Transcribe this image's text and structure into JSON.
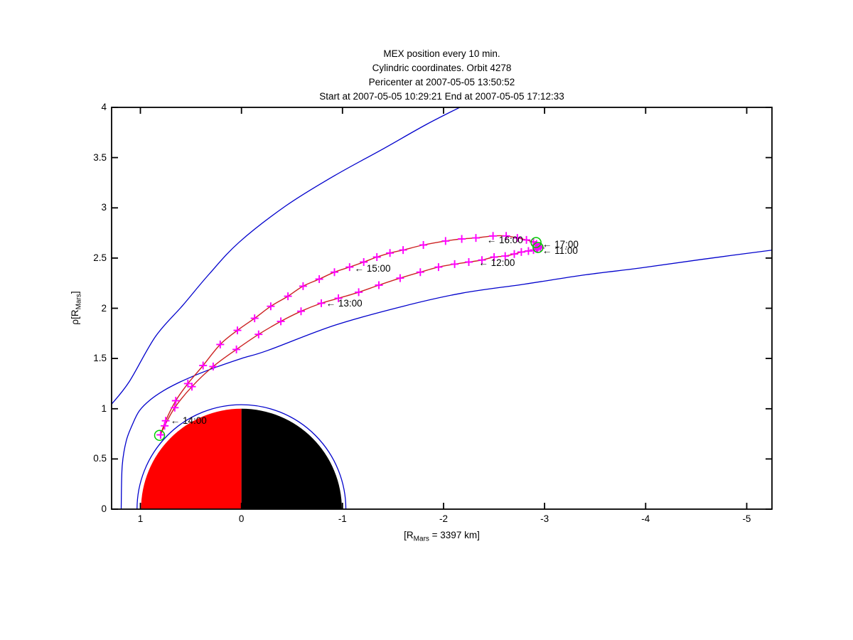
{
  "figure": {
    "title_lines": [
      "MEX position every 10 min.",
      "Cylindric coordinates. Orbit 4278",
      "Pericenter at 2007-05-05 13:50:52",
      "Start at 2007-05-05 10:29:21 End at 2007-05-05 17:12:33"
    ],
    "background": "#ffffff"
  },
  "axes": {
    "xlabel": {
      "prefix": "[R",
      "sub": "Mars",
      "suffix": " = 3397 km]"
    },
    "ylabel": {
      "prefix": "ρ[R",
      "sub": "Mars",
      "suffix": "]"
    },
    "xlim": [
      1.285,
      -5.25
    ],
    "ylim": [
      0,
      4
    ],
    "x_ticks": [
      1,
      0,
      -1,
      -2,
      -3,
      -4,
      -5
    ],
    "x_tick_labels": [
      "1",
      "0",
      "-1",
      "-2",
      "-3",
      "-4",
      "-5"
    ],
    "y_ticks": [
      0,
      0.5,
      1,
      1.5,
      2,
      2.5,
      3,
      3.5,
      4
    ],
    "y_tick_labels": [
      "0",
      "0.5",
      "1",
      "1.5",
      "2",
      "2.5",
      "3",
      "3.5",
      "4"
    ],
    "axis_color": "#000000"
  },
  "chart_data": {
    "type": "line",
    "title": "MEX position every 10 min. Cylindric coordinates. Orbit 4278. Pericenter at 2007-05-05 13:50:52. Start at 2007-05-05 10:29:21 End at 2007-05-05 17:12:33",
    "xlabel": "[R_Mars = 3397 km]",
    "ylabel": "rho [R_Mars]",
    "x_axis_reversed": true,
    "xlim": [
      1.285,
      -5.25
    ],
    "ylim": [
      0,
      4
    ],
    "grid": false,
    "planet": {
      "name": "Mars",
      "radius": 1.0,
      "dayside_color": "#ff0000",
      "nightside_color": "#000000",
      "outline_circle_radius": 1.04,
      "outline_color": "#0000cc"
    },
    "boundaries": [
      {
        "name": "bow-shock",
        "color": "#0000cc",
        "points": [
          [
            1.29,
            1.04
          ],
          [
            1.11,
            1.27
          ],
          [
            0.85,
            1.72
          ],
          [
            0.58,
            2.03
          ],
          [
            0.32,
            2.34
          ],
          [
            0.02,
            2.66
          ],
          [
            -0.44,
            3.02
          ],
          [
            -0.92,
            3.32
          ],
          [
            -1.39,
            3.58
          ],
          [
            -1.83,
            3.83
          ],
          [
            -2.2,
            4.02
          ]
        ]
      },
      {
        "name": "magnetic-pileup-boundary",
        "color": "#0000cc",
        "points": [
          [
            1.19,
            0.0
          ],
          [
            1.18,
            0.43
          ],
          [
            1.14,
            0.68
          ],
          [
            1.08,
            0.84
          ],
          [
            1.01,
            0.98
          ],
          [
            0.9,
            1.09
          ],
          [
            0.77,
            1.18
          ],
          [
            0.62,
            1.26
          ],
          [
            0.44,
            1.34
          ],
          [
            0.26,
            1.41
          ],
          [
            0.0,
            1.5
          ],
          [
            -0.26,
            1.58
          ],
          [
            -0.92,
            1.83
          ],
          [
            -1.6,
            2.02
          ],
          [
            -2.18,
            2.15
          ],
          [
            -2.8,
            2.24
          ],
          [
            -3.38,
            2.33
          ],
          [
            -3.94,
            2.4
          ],
          [
            -4.58,
            2.49
          ],
          [
            -5.26,
            2.58
          ]
        ]
      }
    ],
    "trajectory": {
      "line_color": "#cc2222",
      "marker": "+",
      "marker_color": "#ff00ff",
      "interval_minutes": 10,
      "inbound_points": [
        [
          -2.94,
          2.61
        ],
        [
          -2.92,
          2.6
        ],
        [
          -2.89,
          2.58
        ],
        [
          -2.84,
          2.57
        ],
        [
          -2.77,
          2.56
        ],
        [
          -2.7,
          2.54
        ],
        [
          -2.61,
          2.52
        ],
        [
          -2.5,
          2.51
        ],
        [
          -2.38,
          2.48
        ],
        [
          -2.25,
          2.46
        ],
        [
          -2.11,
          2.44
        ],
        [
          -1.95,
          2.41
        ],
        [
          -1.77,
          2.36
        ],
        [
          -1.57,
          2.3
        ],
        [
          -1.36,
          2.23
        ],
        [
          -1.16,
          2.16
        ],
        [
          -0.96,
          2.1
        ],
        [
          -0.79,
          2.05
        ],
        [
          -0.59,
          1.97
        ],
        [
          -0.39,
          1.87
        ],
        [
          -0.17,
          1.74
        ],
        [
          0.05,
          1.59
        ],
        [
          0.28,
          1.42
        ],
        [
          0.49,
          1.22
        ],
        [
          0.66,
          1.01
        ],
        [
          0.76,
          0.83
        ],
        [
          0.8,
          0.74
        ]
      ],
      "outbound_points": [
        [
          0.8,
          0.74
        ],
        [
          0.75,
          0.88
        ],
        [
          0.65,
          1.08
        ],
        [
          0.53,
          1.25
        ],
        [
          0.38,
          1.43
        ],
        [
          0.21,
          1.64
        ],
        [
          0.04,
          1.78
        ],
        [
          -0.13,
          1.9
        ],
        [
          -0.29,
          2.02
        ],
        [
          -0.46,
          2.12
        ],
        [
          -0.61,
          2.22
        ],
        [
          -0.77,
          2.29
        ],
        [
          -0.92,
          2.36
        ],
        [
          -1.07,
          2.41
        ],
        [
          -1.21,
          2.46
        ],
        [
          -1.34,
          2.51
        ],
        [
          -1.47,
          2.55
        ],
        [
          -1.6,
          2.58
        ],
        [
          -1.8,
          2.63
        ],
        [
          -2.02,
          2.67
        ],
        [
          -2.18,
          2.69
        ],
        [
          -2.32,
          2.7
        ],
        [
          -2.49,
          2.72
        ],
        [
          -2.62,
          2.72
        ],
        [
          -2.73,
          2.7
        ],
        [
          -2.82,
          2.68
        ],
        [
          -2.89,
          2.66
        ],
        [
          -2.92,
          2.64
        ]
      ],
      "cluster_extra_markers": [
        [
          -2.93,
          2.59
        ],
        [
          -2.95,
          2.62
        ],
        [
          -2.91,
          2.63
        ],
        [
          -2.96,
          2.6
        ]
      ]
    },
    "special_markers": {
      "color": "#00cc00",
      "shape": "circle",
      "points": [
        {
          "name": "pericenter",
          "x": 0.81,
          "rho": 0.735
        },
        {
          "name": "orbit-start",
          "x": -2.935,
          "rho": 2.605
        },
        {
          "name": "orbit-end",
          "x": -2.915,
          "rho": 2.655
        }
      ]
    },
    "annotations": [
      {
        "text": "← 11:00",
        "x": -2.97,
        "rho": 2.57
      },
      {
        "text": "← 17:00",
        "x": -2.97,
        "rho": 2.635
      },
      {
        "text": "← 16:00",
        "x": -2.42,
        "rho": 2.675
      },
      {
        "text": "← 15:00",
        "x": -1.11,
        "rho": 2.39
      },
      {
        "text": "← 13:00",
        "x": -0.83,
        "rho": 2.045
      },
      {
        "text": "← 12:00",
        "x": -2.34,
        "rho": 2.45
      },
      {
        "text": "← 14:00",
        "x": 0.71,
        "rho": 0.875
      }
    ]
  }
}
